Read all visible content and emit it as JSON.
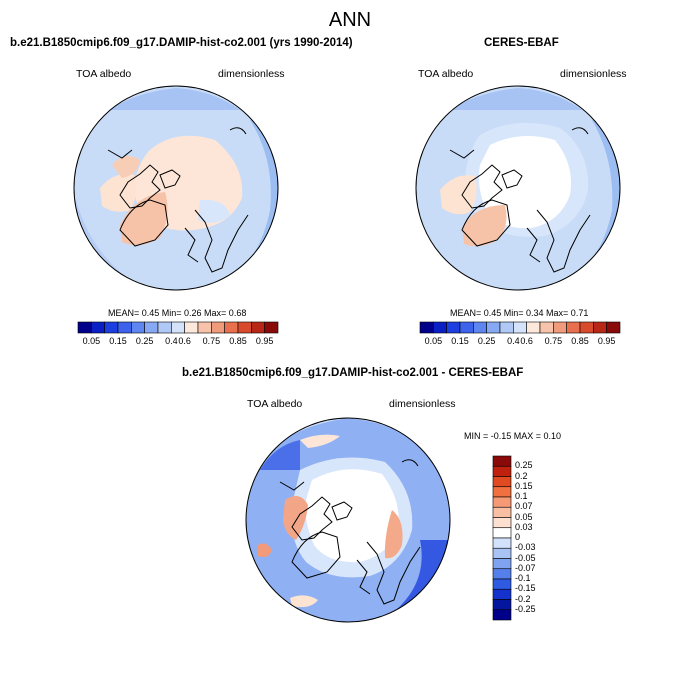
{
  "title": "ANN",
  "panels": {
    "model": {
      "header": "b.e21.B1850cmip6.f09_g17.DAMIP-hist-co2.001 (yrs 1990-2014)",
      "left_label": "TOA albedo",
      "right_label": "dimensionless",
      "stats": "MEAN=  0.45  Min=  0.26  Max=  0.68"
    },
    "obs": {
      "header": "CERES-EBAF",
      "left_label": "TOA albedo",
      "right_label": "dimensionless",
      "stats": "MEAN=  0.45  Min=  0.34  Max=  0.71"
    },
    "diff": {
      "header": "b.e21.B1850cmip6.f09_g17.DAMIP-hist-co2.001 - CERES-EBAF",
      "left_label": "TOA albedo",
      "right_label": "dimensionless",
      "stats": "MIN =  -0.15 MAX =   0.10"
    }
  },
  "colorbar_abs": {
    "tick_labels": [
      "0.05",
      "0.15",
      "0.25",
      "0.4",
      "0.6",
      "0.75",
      "0.85",
      "0.95"
    ],
    "colors": [
      "#00008b",
      "#0a1fc4",
      "#1e3fe0",
      "#3d63ec",
      "#5f86f0",
      "#87a8f3",
      "#b0c8f5",
      "#d4e3fa",
      "#fde8dc",
      "#f7c3aa",
      "#f09b7b",
      "#e8704f",
      "#d84a2c",
      "#b82616",
      "#8a0a0a"
    ]
  },
  "colorbar_diff": {
    "tick_labels": [
      "0.25",
      "0.2",
      "0.15",
      "0.1",
      "0.07",
      "0.05",
      "0.03",
      "0",
      "-0.03",
      "-0.05",
      "-0.07",
      "-0.1",
      "-0.15",
      "-0.2",
      "-0.25"
    ],
    "colors": [
      "#8a0a0a",
      "#c0200e",
      "#e04a20",
      "#f07040",
      "#f59a75",
      "#f9bfa3",
      "#fde0cf",
      "#ffffff",
      "#d2e2fb",
      "#a9c4f4",
      "#7fa3f0",
      "#5580eb",
      "#2f5ae2",
      "#1533cc",
      "#05169e",
      "#00008b"
    ]
  }
}
